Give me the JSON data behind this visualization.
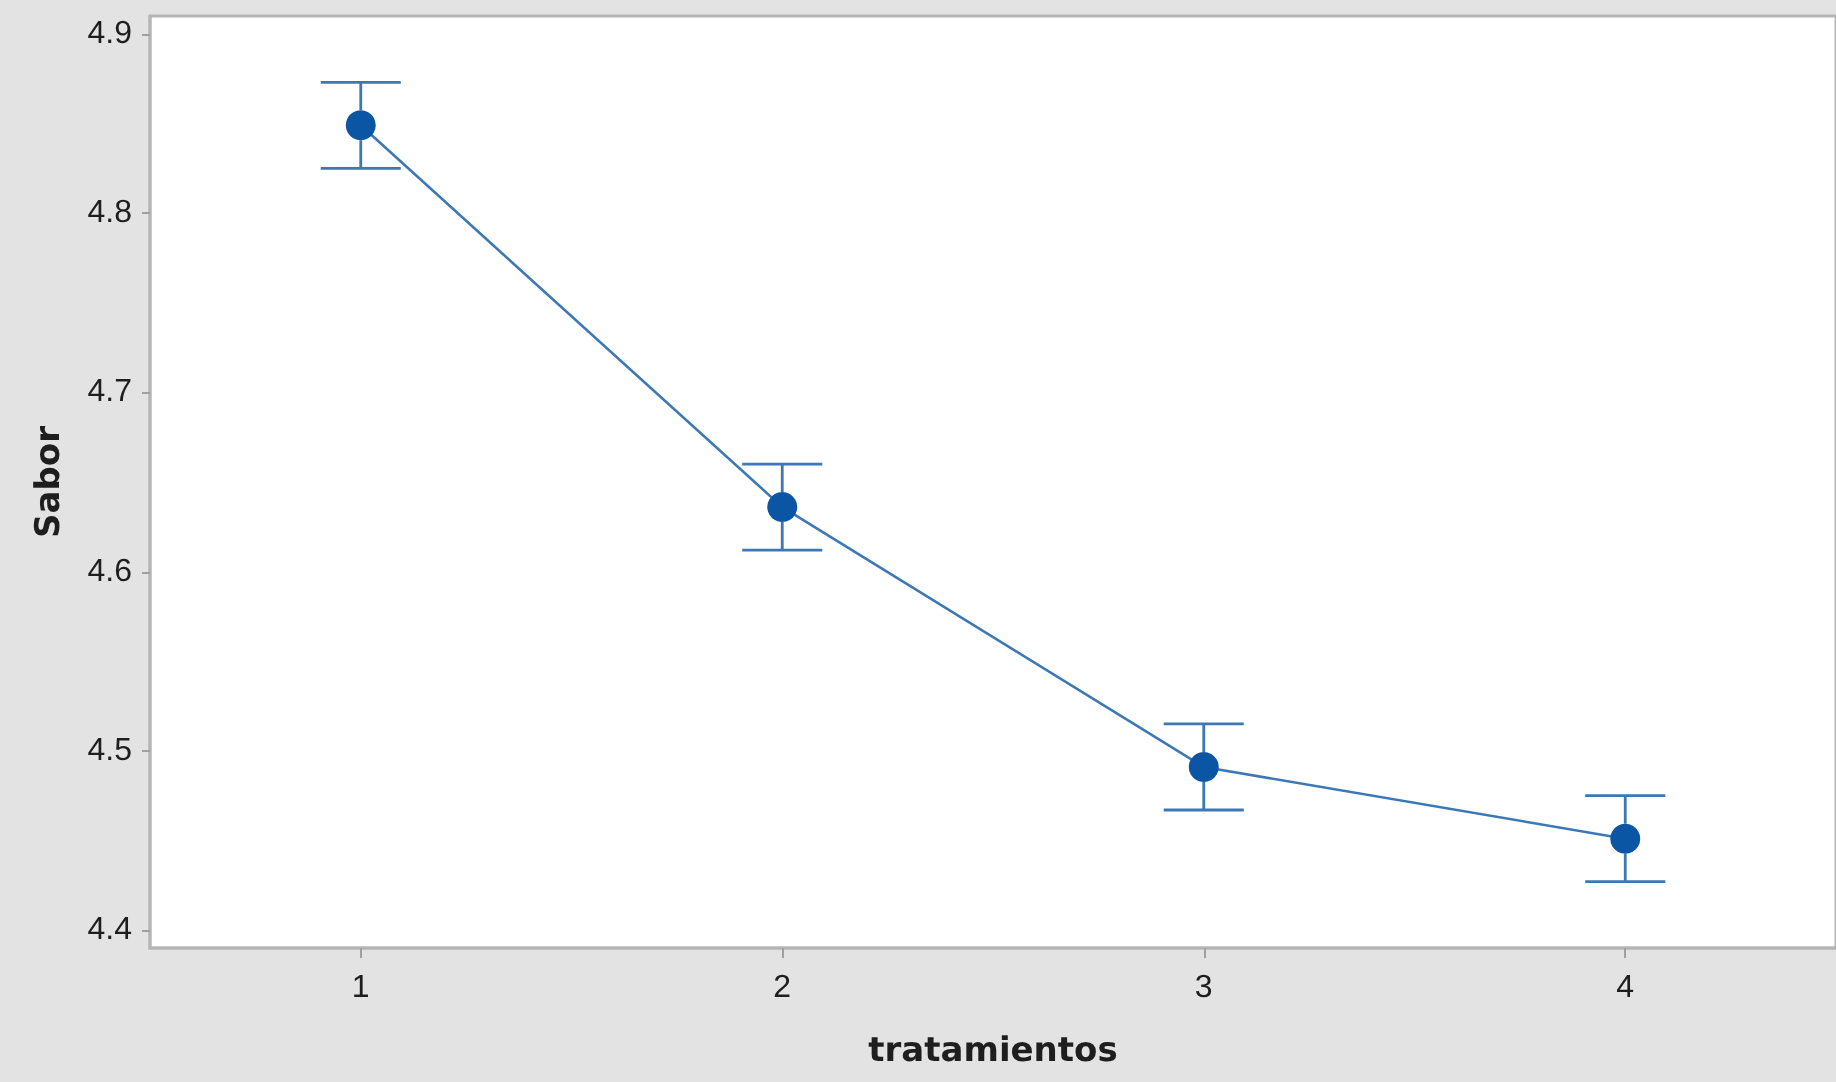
{
  "chart_data": {
    "type": "line",
    "xlabel": "tratamientos",
    "ylabel": "Sabor",
    "categories": [
      "1",
      "2",
      "3",
      "4"
    ],
    "values": [
      4.849,
      4.636,
      4.491,
      4.451
    ],
    "errors": [
      0.024,
      0.024,
      0.024,
      0.024
    ],
    "color": "#0b56a4",
    "ylim": [
      4.39,
      4.91
    ],
    "yticks": [
      4.4,
      4.5,
      4.6,
      4.7,
      4.8,
      4.9
    ],
    "marker": "circle",
    "line_style": "solid"
  }
}
